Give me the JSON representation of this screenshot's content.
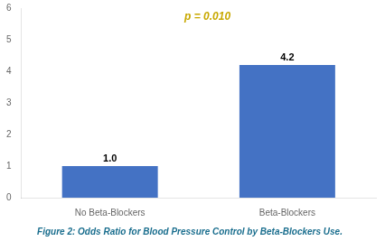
{
  "chart_data": {
    "type": "bar",
    "title": "Figure 2: Odds Ratio for Blood Pressure Control by Beta-Blockers Use.",
    "categories": [
      "No Beta-Blockers",
      "Beta-Blockers"
    ],
    "values": [
      1.0,
      4.2
    ],
    "value_labels": [
      "1.0",
      "4.2"
    ],
    "data_labels": true,
    "color": "#4472C4",
    "ylim": [
      0,
      6
    ],
    "yticks": [
      0,
      1,
      2,
      3,
      4,
      5,
      6
    ],
    "grid": false,
    "annotations": [
      {
        "text": "p = 0.010",
        "color": "#C8A800"
      }
    ]
  }
}
